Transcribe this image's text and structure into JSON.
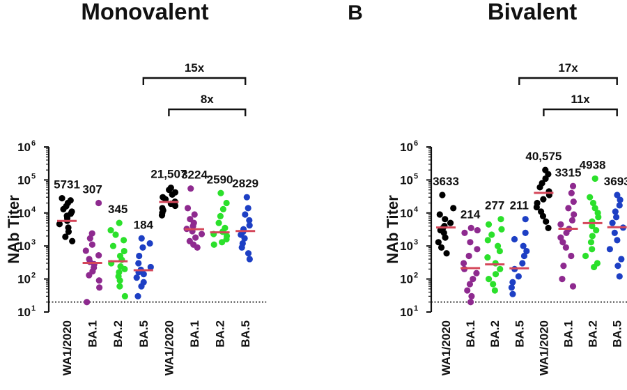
{
  "chart_data": [
    {
      "type": "scatter",
      "panel_letter": "",
      "title": "Monovalent",
      "ylabel": "NAb Titer",
      "yscale": "log",
      "ylim": [
        10,
        1000000
      ],
      "ytick_exponents": [
        1,
        2,
        3,
        4,
        5,
        6
      ],
      "ytick_base": "10",
      "detection_limit": 20,
      "categories": [
        "WA1/2020",
        "BA.1",
        "BA.2",
        "BA.5",
        "WA1/2020",
        "BA.1",
        "BA.2",
        "BA.5"
      ],
      "colors": [
        "#000000",
        "#8e2a8f",
        "#2be02b",
        "#1d3fc4",
        "#000000",
        "#8e2a8f",
        "#2be02b",
        "#1d3fc4"
      ],
      "median_color": "#d4475a",
      "gmt": [
        5731,
        307,
        345,
        184,
        21507,
        3224,
        2590,
        2829
      ],
      "gmt_labels": [
        "5731",
        "307",
        "345",
        "184",
        "21,507",
        "3224",
        "2590",
        "2829"
      ],
      "points": [
        [
          28000,
          24000,
          20000,
          16000,
          13000,
          11000,
          9500,
          8200,
          7000,
          5800,
          4600,
          3600,
          2700,
          1900,
          1400
        ],
        [
          20000,
          2400,
          1700,
          1100,
          720,
          520,
          400,
          330,
          280,
          220,
          170,
          130,
          90,
          55,
          20
        ],
        [
          5000,
          3000,
          2200,
          1500,
          1000,
          700,
          500,
          380,
          300,
          240,
          200,
          160,
          120,
          90,
          60,
          30
        ],
        [
          1700,
          1200,
          900,
          500,
          300,
          230,
          190,
          160,
          140,
          110,
          80,
          60,
          30
        ],
        [
          58000,
          50000,
          42000,
          36000,
          30000,
          26000,
          22000,
          19000,
          16500,
          14000,
          12000,
          10000,
          8500
        ],
        [
          55000,
          14000,
          9000,
          6500,
          5000,
          4000,
          3300,
          2800,
          2300,
          1800,
          1400,
          1100,
          900
        ],
        [
          40000,
          20000,
          13000,
          8000,
          5000,
          3500,
          2700,
          2300,
          2000,
          1600,
          1300,
          1100
        ],
        [
          30000,
          14000,
          9000,
          6000,
          4200,
          3200,
          2700,
          2200,
          1700,
          1200,
          900,
          600,
          400
        ]
      ],
      "comparisons": [
        {
          "label": "15x",
          "from": 3,
          "to": 7,
          "level": 2
        },
        {
          "label": "8x",
          "from": 4,
          "to": 7,
          "level": 1
        }
      ]
    },
    {
      "type": "scatter",
      "panel_letter": "B",
      "title": "Bivalent",
      "ylabel": "NAb Titer",
      "yscale": "log",
      "ylim": [
        10,
        1000000
      ],
      "ytick_exponents": [
        1,
        2,
        3,
        4,
        5,
        6
      ],
      "ytick_base": "10",
      "detection_limit": 20,
      "categories": [
        "WA1/2020",
        "BA.1",
        "BA.2",
        "BA.5",
        "WA1/2020",
        "BA.1",
        "BA.2",
        "BA.5"
      ],
      "colors": [
        "#000000",
        "#8e2a8f",
        "#2be02b",
        "#1d3fc4",
        "#000000",
        "#8e2a8f",
        "#2be02b",
        "#1d3fc4"
      ],
      "median_color": "#d4475a",
      "gmt": [
        3633,
        214,
        277,
        211,
        40575,
        3315,
        4938,
        3693
      ],
      "gmt_labels": [
        "3633",
        "214",
        "277",
        "211",
        "40,575",
        "3315",
        "4938",
        "3693"
      ],
      "points": [
        [
          35000,
          14000,
          9000,
          6500,
          5000,
          4000,
          3500,
          3000,
          2500,
          1800,
          1300,
          900,
          600
        ],
        [
          3500,
          3000,
          2500,
          1300,
          800,
          500,
          300,
          200,
          150,
          100,
          70,
          45,
          30,
          20
        ],
        [
          6500,
          4500,
          3200,
          2200,
          1500,
          1000,
          700,
          450,
          300,
          200,
          140,
          100,
          70,
          45
        ],
        [
          6500,
          2500,
          1600,
          1000,
          700,
          500,
          300,
          200,
          120,
          80,
          55,
          35
        ],
        [
          200000,
          150000,
          110000,
          80000,
          60000,
          45000,
          35000,
          26000,
          20000,
          15000,
          11000,
          8000,
          5500,
          3500
        ],
        [
          65000,
          40000,
          22000,
          14000,
          9000,
          6000,
          4500,
          3300,
          2500,
          1800,
          1300,
          900,
          500,
          250,
          100,
          60
        ],
        [
          110000,
          30000,
          20000,
          14000,
          10000,
          7500,
          5500,
          4000,
          3000,
          2000,
          1300,
          800,
          500,
          300,
          230
        ],
        [
          35000,
          25000,
          17000,
          11000,
          7500,
          5000,
          3600,
          2500,
          1500,
          800,
          400,
          250,
          120
        ]
      ],
      "comparisons": [
        {
          "label": "17x",
          "from": 3,
          "to": 7,
          "level": 2
        },
        {
          "label": "11x",
          "from": 4,
          "to": 7,
          "level": 1
        }
      ]
    }
  ]
}
